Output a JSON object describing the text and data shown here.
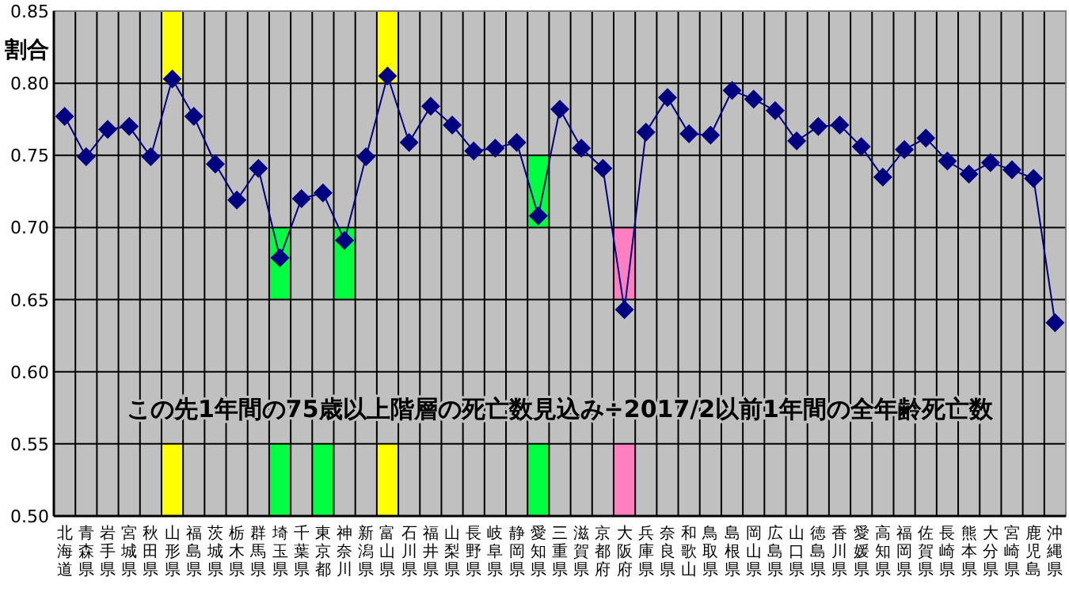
{
  "chart_data": {
    "type": "line",
    "ylabel": "割合",
    "annotations": [
      "この先1年間の75歳以上階層の死亡数見込み÷2017/2以前1年間の全年齢死亡数"
    ],
    "categories": [
      "北海道",
      "青森県",
      "岩手県",
      "宮城県",
      "秋田県",
      "山形県",
      "福島県",
      "茨城県",
      "栃木県",
      "群馬県",
      "埼玉県",
      "千葉県",
      "東京都",
      "神奈川",
      "新潟県",
      "富山県",
      "石川県",
      "福井県",
      "山梨県",
      "長野県",
      "岐阜県",
      "静岡県",
      "愛知県",
      "三重県",
      "滋賀県",
      "京都府",
      "大阪府",
      "兵庫県",
      "奈良県",
      "和歌山",
      "鳥取県",
      "島根県",
      "岡山県",
      "広島県",
      "山口県",
      "徳島県",
      "香川県",
      "愛媛県",
      "高知県",
      "福岡県",
      "佐賀県",
      "長崎県",
      "熊本県",
      "大分県",
      "宮崎県",
      "鹿児島",
      "沖縄県"
    ],
    "series": [
      {
        "type": "bar",
        "values": [
          null,
          null,
          null,
          null,
          null,
          0.05,
          null,
          null,
          null,
          null,
          0.05,
          null,
          null,
          0.05,
          null,
          0.05,
          null,
          null,
          null,
          null,
          null,
          null,
          0.05,
          null,
          null,
          null,
          0.05,
          null,
          null,
          null,
          null,
          null,
          null,
          null,
          null,
          null,
          null,
          null,
          null,
          null,
          null,
          null,
          null,
          null,
          null,
          null,
          null
        ],
        "base": [
          null,
          null,
          null,
          null,
          null,
          0.8,
          null,
          null,
          null,
          null,
          0.65,
          null,
          null,
          0.65,
          null,
          0.8,
          null,
          null,
          null,
          null,
          null,
          null,
          0.7,
          null,
          null,
          null,
          0.65,
          null,
          null,
          null,
          null,
          null,
          null,
          null,
          null,
          null,
          null,
          null,
          null,
          null,
          null,
          null,
          null,
          null,
          null,
          null,
          null
        ],
        "colors": [
          null,
          null,
          null,
          null,
          null,
          "#ffff00",
          null,
          null,
          null,
          null,
          "#00ff40",
          null,
          null,
          "#00ff40",
          null,
          "#ffff00",
          null,
          null,
          null,
          null,
          null,
          null,
          "#00ff40",
          null,
          null,
          null,
          "#ff80c0",
          null,
          null,
          null,
          null,
          null,
          null,
          null,
          null,
          null,
          null,
          null,
          null,
          null,
          null,
          null,
          null,
          null,
          null,
          null,
          null
        ]
      },
      {
        "type": "bar",
        "values": [
          null,
          null,
          null,
          null,
          null,
          0.05,
          null,
          null,
          null,
          null,
          0.05,
          null,
          0.05,
          null,
          null,
          0.05,
          null,
          null,
          null,
          null,
          null,
          null,
          0.05,
          null,
          null,
          null,
          0.05,
          null,
          null,
          null,
          null,
          null,
          null,
          null,
          null,
          null,
          null,
          null,
          null,
          null,
          null,
          null,
          null,
          null,
          null,
          null,
          null
        ],
        "base": [
          null,
          null,
          null,
          null,
          null,
          0.5,
          null,
          null,
          null,
          null,
          0.5,
          null,
          0.5,
          null,
          null,
          0.5,
          null,
          null,
          null,
          null,
          null,
          null,
          0.5,
          null,
          null,
          null,
          0.5,
          null,
          null,
          null,
          null,
          null,
          null,
          null,
          null,
          null,
          null,
          null,
          null,
          null,
          null,
          null,
          null,
          null,
          null,
          null,
          null
        ],
        "colors": [
          null,
          null,
          null,
          null,
          null,
          "#ffff00",
          null,
          null,
          null,
          null,
          "#00ff40",
          null,
          "#00ff40",
          null,
          null,
          "#ffff00",
          null,
          null,
          null,
          null,
          null,
          null,
          "#00ff40",
          null,
          null,
          null,
          "#ff80c0",
          null,
          null,
          null,
          null,
          null,
          null,
          null,
          null,
          null,
          null,
          null,
          null,
          null,
          null,
          null,
          null,
          null,
          null,
          null,
          null
        ]
      },
      {
        "color": "#000080",
        "values": [
          0.777,
          0.749,
          0.768,
          0.77,
          0.749,
          0.803,
          0.777,
          0.744,
          0.719,
          0.741,
          0.679,
          0.72,
          0.724,
          0.691,
          0.749,
          0.805,
          0.759,
          0.784,
          0.771,
          0.753,
          0.755,
          0.759,
          0.708,
          0.782,
          0.755,
          0.741,
          0.643,
          0.766,
          0.79,
          0.765,
          0.764,
          0.795,
          0.789,
          0.781,
          0.76,
          0.77,
          0.771,
          0.756,
          0.735,
          0.754,
          0.762,
          0.746,
          0.737,
          0.745,
          0.74,
          0.734,
          0.634
        ]
      }
    ],
    "ylim": [
      0.5,
      0.85
    ],
    "yticks": [
      {
        "value": 0.5,
        "label": "0.50"
      },
      {
        "value": 0.55,
        "label": "0.55"
      },
      {
        "value": 0.6,
        "label": "0.60"
      },
      {
        "value": 0.65,
        "label": "0.65"
      },
      {
        "value": 0.7,
        "label": "0.70"
      },
      {
        "value": 0.75,
        "label": "0.75"
      },
      {
        "value": 0.8,
        "label": "0.80"
      },
      {
        "value": 0.85,
        "label": "0.85"
      }
    ],
    "grid": true,
    "marker": "diamond",
    "line_style": "solid"
  }
}
